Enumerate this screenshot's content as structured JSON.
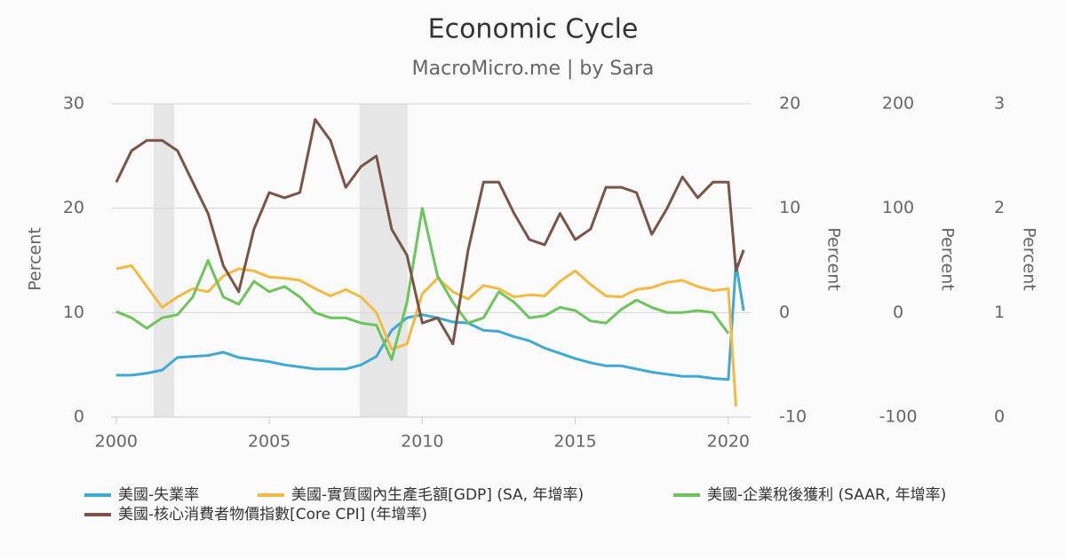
{
  "chart_data": {
    "type": "line",
    "title": "Economic Cycle",
    "subtitle": "MacroMicro.me | by Sara",
    "x": [
      2000,
      2000.5,
      2001,
      2001.5,
      2002,
      2002.5,
      2003,
      2003.5,
      2004,
      2004.5,
      2005,
      2005.5,
      2006,
      2006.5,
      2007,
      2007.5,
      2008,
      2008.5,
      2009,
      2009.5,
      2010,
      2010.5,
      2011,
      2011.5,
      2012,
      2012.5,
      2013,
      2013.5,
      2014,
      2014.5,
      2015,
      2015.5,
      2016,
      2016.5,
      2017,
      2017.5,
      2018,
      2018.5,
      2019,
      2019.5,
      2020,
      2020.25,
      2020.5
    ],
    "xlim": [
      1999.83,
      2020.73
    ],
    "xticks": [
      2000,
      2005,
      2010,
      2015,
      2020
    ],
    "ylim": [
      0,
      30
    ],
    "yticks": [
      0,
      10,
      20,
      30
    ],
    "ylabel": "Percent",
    "y2lim": [
      -10,
      20
    ],
    "y2ticks": [
      -10,
      0,
      10,
      20
    ],
    "y2label": "Percent",
    "y3lim": [
      -100,
      200
    ],
    "y3ticks": [
      -100,
      0,
      100,
      200
    ],
    "y3label": "Percent",
    "y4lim": [
      0,
      3
    ],
    "y4ticks": [
      0,
      1,
      2,
      3
    ],
    "y4label": "Percent",
    "grid": true,
    "recessions": [
      [
        2001.22,
        2001.89
      ],
      [
        2007.95,
        2009.52
      ]
    ],
    "series": [
      {
        "name": "美國-失業率",
        "color": "#3fa9d6",
        "axis": "y",
        "values": [
          4.0,
          4.0,
          4.2,
          4.5,
          5.7,
          5.8,
          5.9,
          6.2,
          5.7,
          5.5,
          5.3,
          5.0,
          4.8,
          4.6,
          4.6,
          4.6,
          5.0,
          5.8,
          8.3,
          9.5,
          9.8,
          9.5,
          9.1,
          9.0,
          8.3,
          8.2,
          7.7,
          7.3,
          6.6,
          6.1,
          5.6,
          5.2,
          4.9,
          4.9,
          4.6,
          4.3,
          4.1,
          3.9,
          3.9,
          3.7,
          3.6,
          14.7,
          10.2
        ]
      },
      {
        "name": "美國-實質國內生產毛額[GDP] (SA, 年增率)",
        "color": "#f5b942",
        "axis": "y2",
        "values": [
          4.2,
          4.5,
          2.5,
          0.5,
          1.5,
          2.3,
          2.0,
          3.5,
          4.2,
          4.0,
          3.4,
          3.3,
          3.1,
          2.3,
          1.6,
          2.2,
          1.5,
          0.0,
          -3.5,
          -3.0,
          1.8,
          3.3,
          2.0,
          1.3,
          2.6,
          2.3,
          1.5,
          1.7,
          1.6,
          3.0,
          4.0,
          2.7,
          1.6,
          1.5,
          2.2,
          2.4,
          2.9,
          3.1,
          2.5,
          2.1,
          2.3,
          -9.0,
          null
        ]
      },
      {
        "name": "美國-企業稅後獲利 (SAAR, 年增率)",
        "color": "#6cc55b",
        "axis": "y3",
        "values": [
          1,
          -5,
          -15,
          -5,
          -2,
          15,
          50,
          15,
          8,
          30,
          20,
          25,
          15,
          0,
          -5,
          -5,
          -10,
          -12,
          -45,
          10,
          100,
          35,
          10,
          -10,
          -5,
          20,
          10,
          -5,
          -3,
          5,
          2,
          -8,
          -10,
          3,
          12,
          5,
          0,
          0,
          2,
          0,
          -20,
          null,
          null
        ]
      },
      {
        "name": "美國-核心消費者物價指數[Core CPI] (年增率)",
        "color": "#7a5446",
        "axis": "y4",
        "values": [
          2.25,
          2.55,
          2.65,
          2.65,
          2.55,
          2.25,
          1.95,
          1.45,
          1.2,
          1.8,
          2.15,
          2.1,
          2.15,
          2.85,
          2.65,
          2.2,
          2.4,
          2.5,
          1.8,
          1.55,
          0.9,
          0.95,
          0.7,
          1.6,
          2.25,
          2.25,
          1.95,
          1.7,
          1.65,
          1.95,
          1.7,
          1.8,
          2.2,
          2.2,
          2.15,
          1.75,
          2.0,
          2.3,
          2.1,
          2.25,
          2.25,
          1.4,
          1.6
        ]
      }
    ]
  }
}
